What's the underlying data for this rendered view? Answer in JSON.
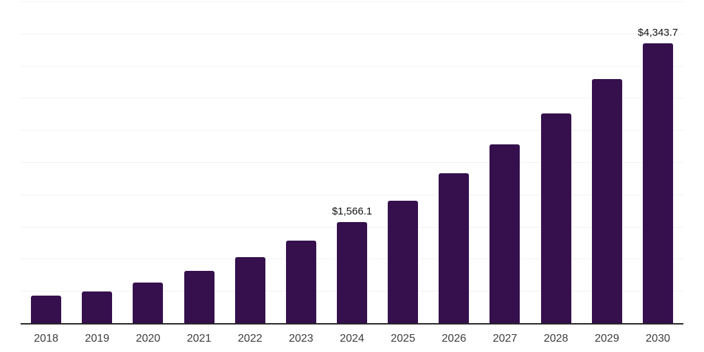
{
  "chart_data": {
    "type": "bar",
    "title": "",
    "xlabel": "",
    "ylabel": "",
    "categories": [
      "2018",
      "2019",
      "2020",
      "2021",
      "2022",
      "2023",
      "2024",
      "2025",
      "2026",
      "2027",
      "2028",
      "2029",
      "2030"
    ],
    "values": [
      427,
      492,
      632,
      812,
      1024,
      1279,
      1566.1,
      1900,
      2328,
      2775,
      3255,
      3790,
      4343.7
    ],
    "data_labels": [
      "",
      "",
      "",
      "",
      "",
      "",
      "$1,566.1",
      "",
      "",
      "",
      "",
      "",
      "$4,343.7"
    ],
    "ylim": [
      0,
      5000
    ],
    "grid_interval": 500,
    "grid": true,
    "legend": false,
    "y_axis_tick_labels_visible": false,
    "colors": {
      "bar": "#35104d",
      "gridline": "#f2f2f2",
      "axis_line": "#262626",
      "tick_label": "#3c3c3c",
      "data_label": "#111111",
      "background": "#ffffff"
    }
  }
}
